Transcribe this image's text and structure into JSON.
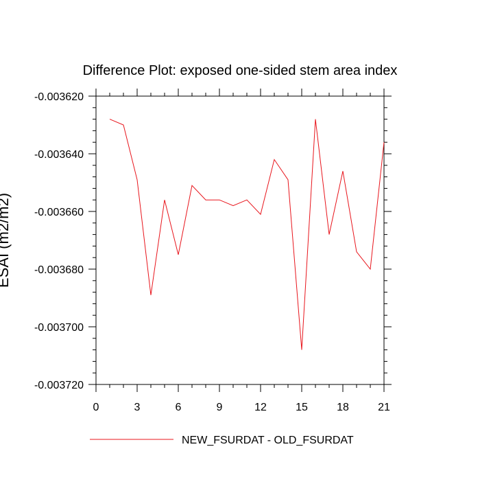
{
  "chart_data": {
    "type": "line",
    "title": "Difference Plot: exposed one-sided stem area index",
    "xlabel": "",
    "ylabel": "ESAI (m2/m2)",
    "xlim": [
      0,
      21
    ],
    "ylim": [
      -0.00372,
      -0.00362
    ],
    "x_ticks": [
      0,
      3,
      6,
      9,
      12,
      15,
      18,
      21
    ],
    "x_tick_labels": [
      "0",
      "3",
      "6",
      "9",
      "12",
      "15",
      "18",
      "21"
    ],
    "y_ticks": [
      -0.00362,
      -0.00364,
      -0.00366,
      -0.00368,
      -0.0037,
      -0.00372
    ],
    "y_tick_labels": [
      "-0.003620",
      "-0.003640",
      "-0.003660",
      "-0.003680",
      "-0.003700",
      "-0.003720"
    ],
    "grid": false,
    "legend_position": "bottom",
    "series": [
      {
        "name": "NEW_FSURDAT - OLD_FSURDAT",
        "color": "#e8141b",
        "x": [
          1,
          2,
          3,
          4,
          5,
          6,
          7,
          8,
          9,
          10,
          11,
          12,
          13,
          14,
          15,
          16,
          17,
          18,
          19,
          20,
          21
        ],
        "y": [
          -0.003628,
          -0.00363,
          -0.003649,
          -0.003689,
          -0.003656,
          -0.003675,
          -0.003651,
          -0.003656,
          -0.003656,
          -0.003658,
          -0.003656,
          -0.003661,
          -0.003642,
          -0.003649,
          -0.003708,
          -0.003628,
          -0.003668,
          -0.003646,
          -0.003674,
          -0.00368,
          -0.003636
        ]
      }
    ]
  }
}
